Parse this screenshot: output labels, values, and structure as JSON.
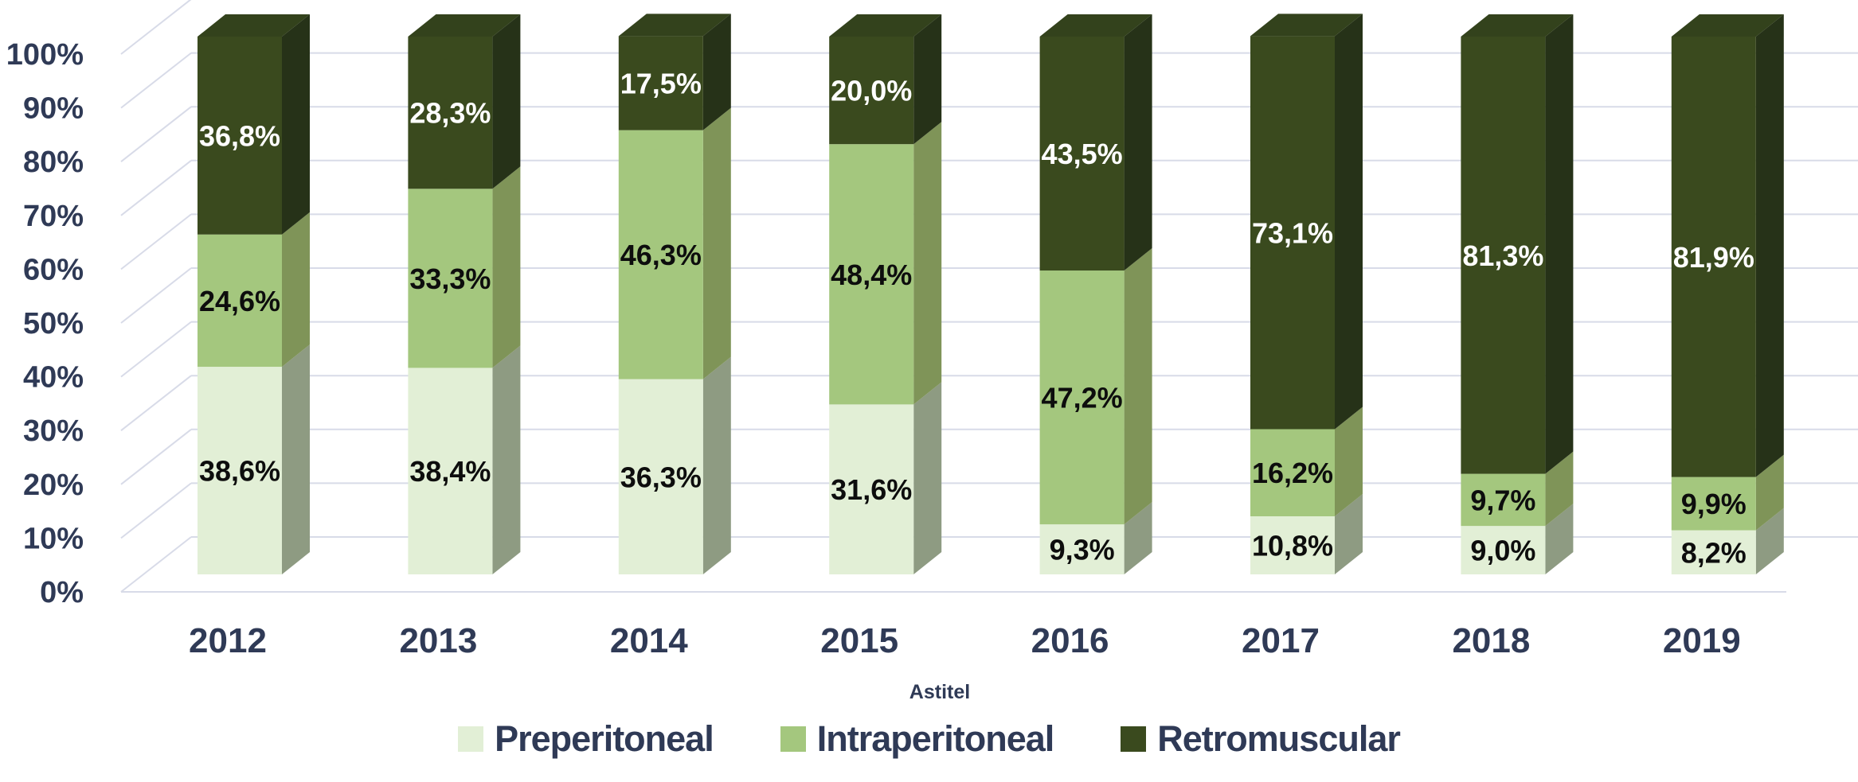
{
  "chart_data": {
    "type": "bar",
    "variant": "3d-100%-stacked-column",
    "title": "",
    "xlabel": "Astitel",
    "ylabel": "",
    "ylim": [
      0,
      100
    ],
    "grid": true,
    "legend_position": "bottom",
    "y_ticks": [
      "0%",
      "10%",
      "20%",
      "30%",
      "40%",
      "50%",
      "60%",
      "70%",
      "80%",
      "90%",
      "100%"
    ],
    "categories": [
      "2012",
      "2013",
      "2014",
      "2015",
      "2016",
      "2017",
      "2018",
      "2019"
    ],
    "series": [
      {
        "name": "Preperitoneal",
        "color": "#E2EFD6",
        "side_color": "#8E9B82",
        "label_color": "#0D0D0D",
        "values": [
          38.6,
          38.4,
          36.3,
          31.6,
          9.3,
          10.8,
          9.0,
          8.2
        ],
        "labels": [
          "38,6%",
          "38,4%",
          "36,3%",
          "31,6%",
          "9,3%",
          "10,8%",
          "9,0%",
          "8,2%"
        ]
      },
      {
        "name": "Intraperitoneal",
        "color": "#A4C77E",
        "side_color": "#7F9458",
        "label_color": "#0D0D0D",
        "values": [
          24.6,
          33.3,
          46.3,
          48.4,
          47.2,
          16.2,
          9.7,
          9.9
        ],
        "labels": [
          "24,6%",
          "33,3%",
          "46,3%",
          "48,4%",
          "47,2%",
          "16,2%",
          "9,7%",
          "9,9%"
        ]
      },
      {
        "name": "Retromuscular",
        "color": "#3A4A1E",
        "side_color": "#263218",
        "top_color": "#33421C",
        "label_color": "#FFFFFF",
        "values": [
          36.8,
          28.3,
          17.5,
          20.0,
          43.5,
          73.1,
          81.3,
          81.9
        ],
        "labels": [
          "36,8%",
          "28,3%",
          "17,5%",
          "20,0%",
          "43,5%",
          "73,1%",
          "81,3%",
          "81,9%"
        ]
      }
    ],
    "colors": {
      "axis_text": "#2F3A56",
      "gridline": "#D8DBE8",
      "background": "#FFFFFF"
    }
  }
}
